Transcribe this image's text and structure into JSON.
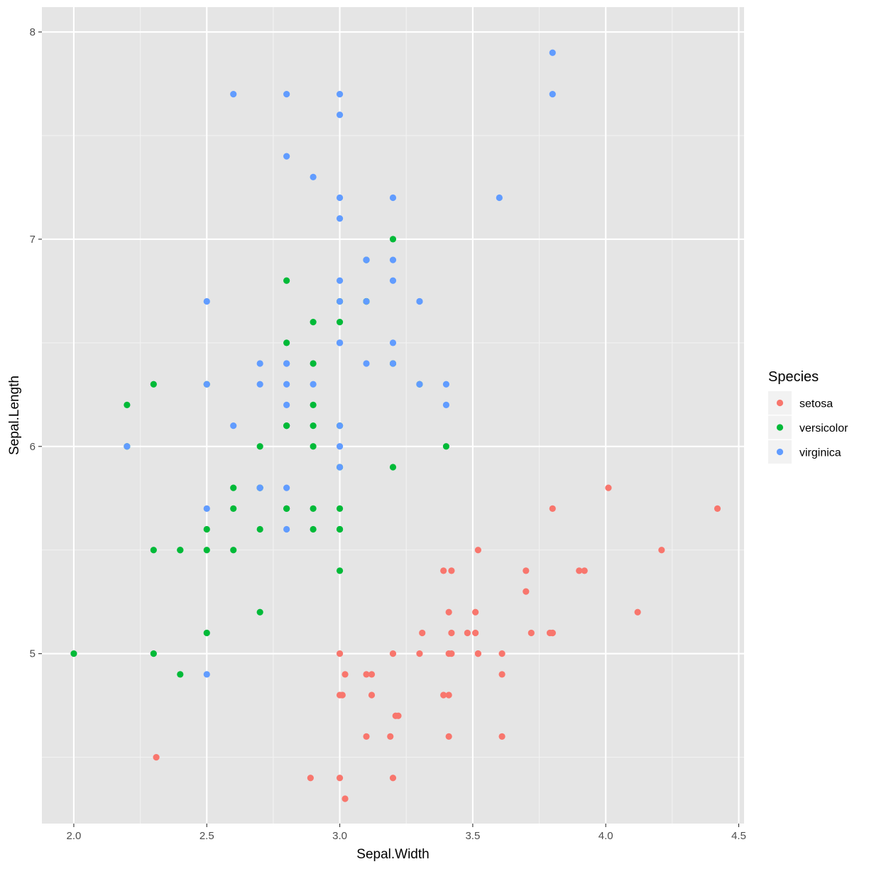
{
  "chart_data": {
    "type": "scatter",
    "xlabel": "Sepal.Width",
    "ylabel": "Sepal.Length",
    "xlim": [
      1.88,
      4.52
    ],
    "ylim": [
      4.18,
      8.12
    ],
    "x_ticks": [
      2.0,
      2.5,
      3.0,
      3.5,
      4.0,
      4.5
    ],
    "x_tick_labels": [
      "2.0",
      "2.5",
      "3.0",
      "3.5",
      "4.0",
      "4.5"
    ],
    "y_ticks": [
      5,
      6,
      7,
      8
    ],
    "y_tick_labels": [
      "5",
      "6",
      "7",
      "8"
    ],
    "grid": true,
    "background": "#e5e5e5",
    "legend": {
      "title": "Species",
      "placement": "right"
    },
    "series": [
      {
        "name": "setosa",
        "color": "#f8766d",
        "points": [
          [
            3.51,
            5.1
          ],
          [
            3.02,
            4.9
          ],
          [
            3.21,
            4.7
          ],
          [
            3.1,
            4.6
          ],
          [
            3.61,
            5.0
          ],
          [
            3.9,
            5.4
          ],
          [
            3.41,
            4.6
          ],
          [
            3.42,
            5.0
          ],
          [
            2.89,
            4.4
          ],
          [
            3.12,
            4.9
          ],
          [
            3.7,
            5.4
          ],
          [
            3.41,
            4.8
          ],
          [
            3.01,
            4.8
          ],
          [
            3.02,
            4.3
          ],
          [
            4.01,
            5.8
          ],
          [
            4.42,
            5.7
          ],
          [
            3.92,
            5.4
          ],
          [
            3.48,
            5.1
          ],
          [
            3.8,
            5.7
          ],
          [
            3.79,
            5.1
          ],
          [
            3.39,
            5.4
          ],
          [
            3.72,
            5.1
          ],
          [
            3.61,
            4.6
          ],
          [
            3.31,
            5.1
          ],
          [
            3.39,
            4.8
          ],
          [
            3.0,
            5.0
          ],
          [
            3.41,
            5.0
          ],
          [
            3.51,
            5.2
          ],
          [
            3.41,
            5.2
          ],
          [
            3.22,
            4.7
          ],
          [
            3.12,
            4.8
          ],
          [
            3.42,
            5.4
          ],
          [
            4.12,
            5.2
          ],
          [
            4.21,
            5.5
          ],
          [
            3.1,
            4.9
          ],
          [
            3.2,
            5.0
          ],
          [
            3.52,
            5.5
          ],
          [
            3.61,
            4.9
          ],
          [
            3.0,
            4.4
          ],
          [
            3.42,
            5.1
          ],
          [
            3.52,
            5.0
          ],
          [
            2.31,
            4.5
          ],
          [
            3.2,
            4.4
          ],
          [
            3.52,
            5.0
          ],
          [
            3.8,
            5.1
          ],
          [
            3.0,
            4.8
          ],
          [
            3.8,
            5.1
          ],
          [
            3.19,
            4.6
          ],
          [
            3.7,
            5.3
          ],
          [
            3.3,
            5.0
          ]
        ]
      },
      {
        "name": "versicolor",
        "color": "#00ba38",
        "points": [
          [
            3.2,
            7.0
          ],
          [
            3.2,
            6.4
          ],
          [
            3.1,
            6.9
          ],
          [
            2.3,
            5.5
          ],
          [
            2.8,
            6.5
          ],
          [
            2.8,
            5.7
          ],
          [
            3.3,
            6.3
          ],
          [
            2.4,
            4.9
          ],
          [
            2.9,
            6.6
          ],
          [
            2.7,
            5.2
          ],
          [
            2.0,
            5.0
          ],
          [
            3.0,
            5.9
          ],
          [
            2.2,
            6.0
          ],
          [
            2.9,
            6.1
          ],
          [
            2.9,
            5.6
          ],
          [
            3.1,
            6.7
          ],
          [
            3.0,
            5.6
          ],
          [
            2.7,
            5.8
          ],
          [
            2.2,
            6.2
          ],
          [
            2.5,
            5.6
          ],
          [
            3.2,
            5.9
          ],
          [
            2.8,
            6.1
          ],
          [
            2.5,
            6.3
          ],
          [
            2.8,
            6.1
          ],
          [
            2.9,
            6.4
          ],
          [
            3.0,
            6.6
          ],
          [
            2.8,
            6.8
          ],
          [
            3.0,
            6.7
          ],
          [
            2.9,
            6.0
          ],
          [
            2.6,
            5.7
          ],
          [
            2.4,
            5.5
          ],
          [
            2.4,
            5.5
          ],
          [
            2.7,
            5.8
          ],
          [
            2.7,
            6.0
          ],
          [
            3.0,
            5.4
          ],
          [
            3.4,
            6.0
          ],
          [
            3.1,
            6.7
          ],
          [
            2.3,
            6.3
          ],
          [
            3.0,
            5.6
          ],
          [
            2.5,
            5.5
          ],
          [
            2.6,
            5.5
          ],
          [
            3.0,
            6.1
          ],
          [
            2.6,
            5.8
          ],
          [
            2.3,
            5.0
          ],
          [
            2.7,
            5.6
          ],
          [
            3.0,
            5.7
          ],
          [
            2.9,
            5.7
          ],
          [
            2.9,
            6.2
          ],
          [
            2.5,
            5.1
          ],
          [
            2.8,
            5.7
          ]
        ]
      },
      {
        "name": "virginica",
        "color": "#619cff",
        "points": [
          [
            3.3,
            6.3
          ],
          [
            2.7,
            5.8
          ],
          [
            3.0,
            7.1
          ],
          [
            2.9,
            6.3
          ],
          [
            3.0,
            6.5
          ],
          [
            3.0,
            7.6
          ],
          [
            2.5,
            4.9
          ],
          [
            2.9,
            7.3
          ],
          [
            2.5,
            6.7
          ],
          [
            3.6,
            7.2
          ],
          [
            3.2,
            6.5
          ],
          [
            2.7,
            6.4
          ],
          [
            3.0,
            6.8
          ],
          [
            2.5,
            5.7
          ],
          [
            2.8,
            5.8
          ],
          [
            3.2,
            6.4
          ],
          [
            3.0,
            6.5
          ],
          [
            3.8,
            7.7
          ],
          [
            2.6,
            7.7
          ],
          [
            2.2,
            6.0
          ],
          [
            3.2,
            6.9
          ],
          [
            2.8,
            5.6
          ],
          [
            2.8,
            7.7
          ],
          [
            2.7,
            6.3
          ],
          [
            3.3,
            6.7
          ],
          [
            3.2,
            7.2
          ],
          [
            2.8,
            6.2
          ],
          [
            3.0,
            6.1
          ],
          [
            2.8,
            6.4
          ],
          [
            3.0,
            7.2
          ],
          [
            2.8,
            7.4
          ],
          [
            3.8,
            7.9
          ],
          [
            2.8,
            6.4
          ],
          [
            2.8,
            6.3
          ],
          [
            2.6,
            6.1
          ],
          [
            3.0,
            7.7
          ],
          [
            3.4,
            6.3
          ],
          [
            3.1,
            6.4
          ],
          [
            3.0,
            6.0
          ],
          [
            3.1,
            6.9
          ],
          [
            3.1,
            6.7
          ],
          [
            3.1,
            6.9
          ],
          [
            2.7,
            5.8
          ],
          [
            3.2,
            6.8
          ],
          [
            3.3,
            6.7
          ],
          [
            3.0,
            6.7
          ],
          [
            2.5,
            6.3
          ],
          [
            3.0,
            6.5
          ],
          [
            3.4,
            6.2
          ],
          [
            3.0,
            5.9
          ]
        ]
      }
    ]
  }
}
